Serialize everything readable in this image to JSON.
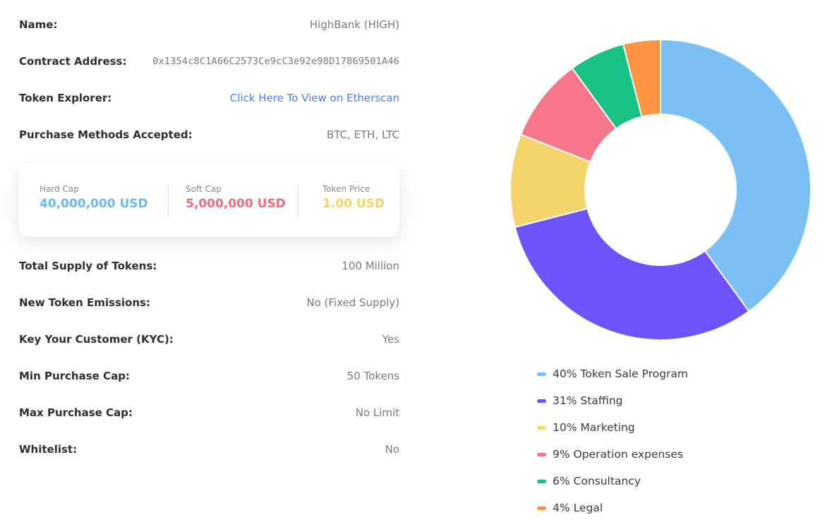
{
  "details": [
    {
      "label": "Name:",
      "value": "HighBank (HIGH)",
      "type": "text"
    },
    {
      "label": "Contract Address:",
      "value": "0x1354c8C1A66C2573Ce9cC3e92e98D17869501A46",
      "type": "mono"
    },
    {
      "label": "Token Explorer:",
      "value": "Click Here To View on Etherscan",
      "type": "link"
    },
    {
      "label": "Purchase Methods Accepted:",
      "value": "BTC, ETH, LTC",
      "type": "text"
    }
  ],
  "caps": [
    {
      "title": "Hard Cap",
      "value": "40,000,000 USD",
      "color": "#6bbaef"
    },
    {
      "title": "Soft Cap",
      "value": "5,000,000 USD",
      "color": "#ef6b80"
    },
    {
      "title": "Token Price",
      "value": "1.00 USD",
      "color": "#f2d36b"
    }
  ],
  "details2": [
    {
      "label": "Total Supply of Tokens:",
      "value": "100 Million"
    },
    {
      "label": "New Token Emissions:",
      "value": "No (Fixed Supply)"
    },
    {
      "label": "Key Your Customer (KYC):",
      "value": "Yes"
    },
    {
      "label": "Min Purchase Cap:",
      "value": "50 Tokens"
    },
    {
      "label": "Max Purchase Cap:",
      "value": "No Limit"
    },
    {
      "label": "Whitelist:",
      "value": "No"
    }
  ],
  "chart_data": {
    "type": "pie",
    "donut": true,
    "legend_position": "bottom",
    "categories": [
      "Token Sale Program",
      "Staffing",
      "Marketing",
      "Operation expenses",
      "Consultancy",
      "Legal"
    ],
    "values": [
      40,
      31,
      10,
      9,
      6,
      4
    ],
    "colors": [
      "#7ac0f5",
      "#7052fb",
      "#f4d46b",
      "#f6778a",
      "#19c185",
      "#ff9442"
    ],
    "legend_labels": [
      "40% Token Sale Program",
      "31% Staffing",
      "10% Marketing",
      "9% Operation expenses",
      "6% Consultancy",
      "4% Legal"
    ]
  }
}
